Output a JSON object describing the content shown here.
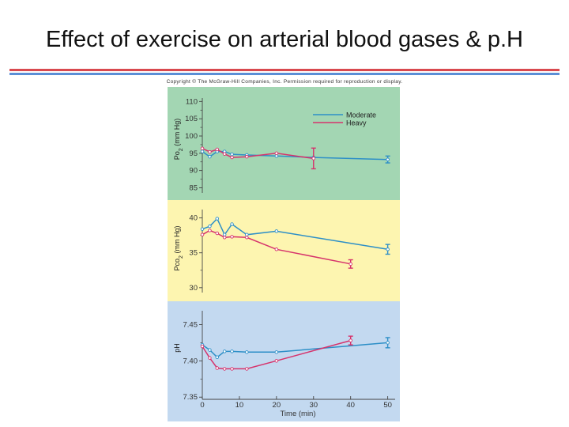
{
  "slide": {
    "title": "Effect of exercise on arterial blood gases & p.H",
    "copyright": "Copyright © The McGraw-Hill Companies, Inc. Permission required for reproduction or display."
  },
  "colors": {
    "moderate": "#2d8fc7",
    "heavy": "#d6336c",
    "po2_panel": "#a3d6b3",
    "pco2_panel": "#fdf5b0",
    "ph_panel": "#c3d9f0",
    "title_rule_red": "#d9494f",
    "title_rule_blue": "#5b8fd6"
  },
  "chart_data": [
    {
      "type": "line",
      "id": "po2",
      "ylabel_main": "Po",
      "ylabel_sub": "2",
      "ylabel_unit": " (mm Hg)",
      "ylim": [
        83.5,
        111
      ],
      "yticks": [
        85,
        90,
        95,
        100,
        105,
        110
      ],
      "legend": {
        "position": "top-right",
        "entries": [
          "Moderate",
          "Heavy"
        ]
      },
      "series": [
        {
          "name": "Moderate",
          "x": [
            0,
            2,
            4,
            6,
            8,
            12,
            20,
            30,
            50
          ],
          "y": [
            95.5,
            94,
            95.5,
            95.5,
            94.7,
            94.5,
            94.2,
            93.8,
            93.2
          ],
          "error_at": [
            50
          ],
          "error": 1.0
        },
        {
          "name": "Heavy",
          "x": [
            0,
            2,
            4,
            6,
            8,
            12,
            20,
            30
          ],
          "y": [
            96.4,
            95.4,
            96.1,
            94.8,
            93.8,
            94,
            95,
            93.5
          ],
          "error_at": [
            30
          ],
          "error": 3.0
        }
      ]
    },
    {
      "type": "line",
      "id": "pco2",
      "ylabel_main": "Pco",
      "ylabel_sub": "2",
      "ylabel_unit": " (mm Hg)",
      "ylim": [
        29.3,
        41.2
      ],
      "yticks": [
        30,
        35,
        40
      ],
      "series": [
        {
          "name": "Moderate",
          "x": [
            0,
            2,
            4,
            6,
            8,
            12,
            20,
            50
          ],
          "y": [
            38.4,
            38.8,
            39.9,
            37.6,
            39.1,
            37.6,
            38.1,
            35.5
          ],
          "error_at": [
            50
          ],
          "error": 0.7
        },
        {
          "name": "Heavy",
          "x": [
            0,
            2,
            4,
            6,
            8,
            12,
            20,
            40
          ],
          "y": [
            37.6,
            38.2,
            37.8,
            37.2,
            37.3,
            37.2,
            35.5,
            33.4
          ],
          "error_at": [
            40
          ],
          "error": 0.6
        }
      ]
    },
    {
      "type": "line",
      "id": "ph",
      "ylabel_main": "pH",
      "ylim": [
        7.347,
        7.469
      ],
      "yticks": [
        7.35,
        7.4,
        7.45
      ],
      "ytick_labels": [
        "7.35",
        "7.40",
        "7.45"
      ],
      "xlabel": "Time (min)",
      "xlim": [
        0,
        52
      ],
      "xticks": [
        0,
        10,
        20,
        30,
        40,
        50
      ],
      "series": [
        {
          "name": "Moderate",
          "x": [
            0,
            2,
            4,
            6,
            8,
            12,
            20,
            50
          ],
          "y": [
            7.422,
            7.415,
            7.405,
            7.413,
            7.413,
            7.412,
            7.412,
            7.425
          ],
          "error_at": [
            50
          ],
          "error": 0.007
        },
        {
          "name": "Heavy",
          "x": [
            0,
            2,
            4,
            6,
            8,
            12,
            20,
            40
          ],
          "y": [
            7.42,
            7.404,
            7.39,
            7.389,
            7.389,
            7.389,
            7.4,
            7.428
          ],
          "error_at": [
            40
          ],
          "error": 0.006
        }
      ]
    }
  ]
}
